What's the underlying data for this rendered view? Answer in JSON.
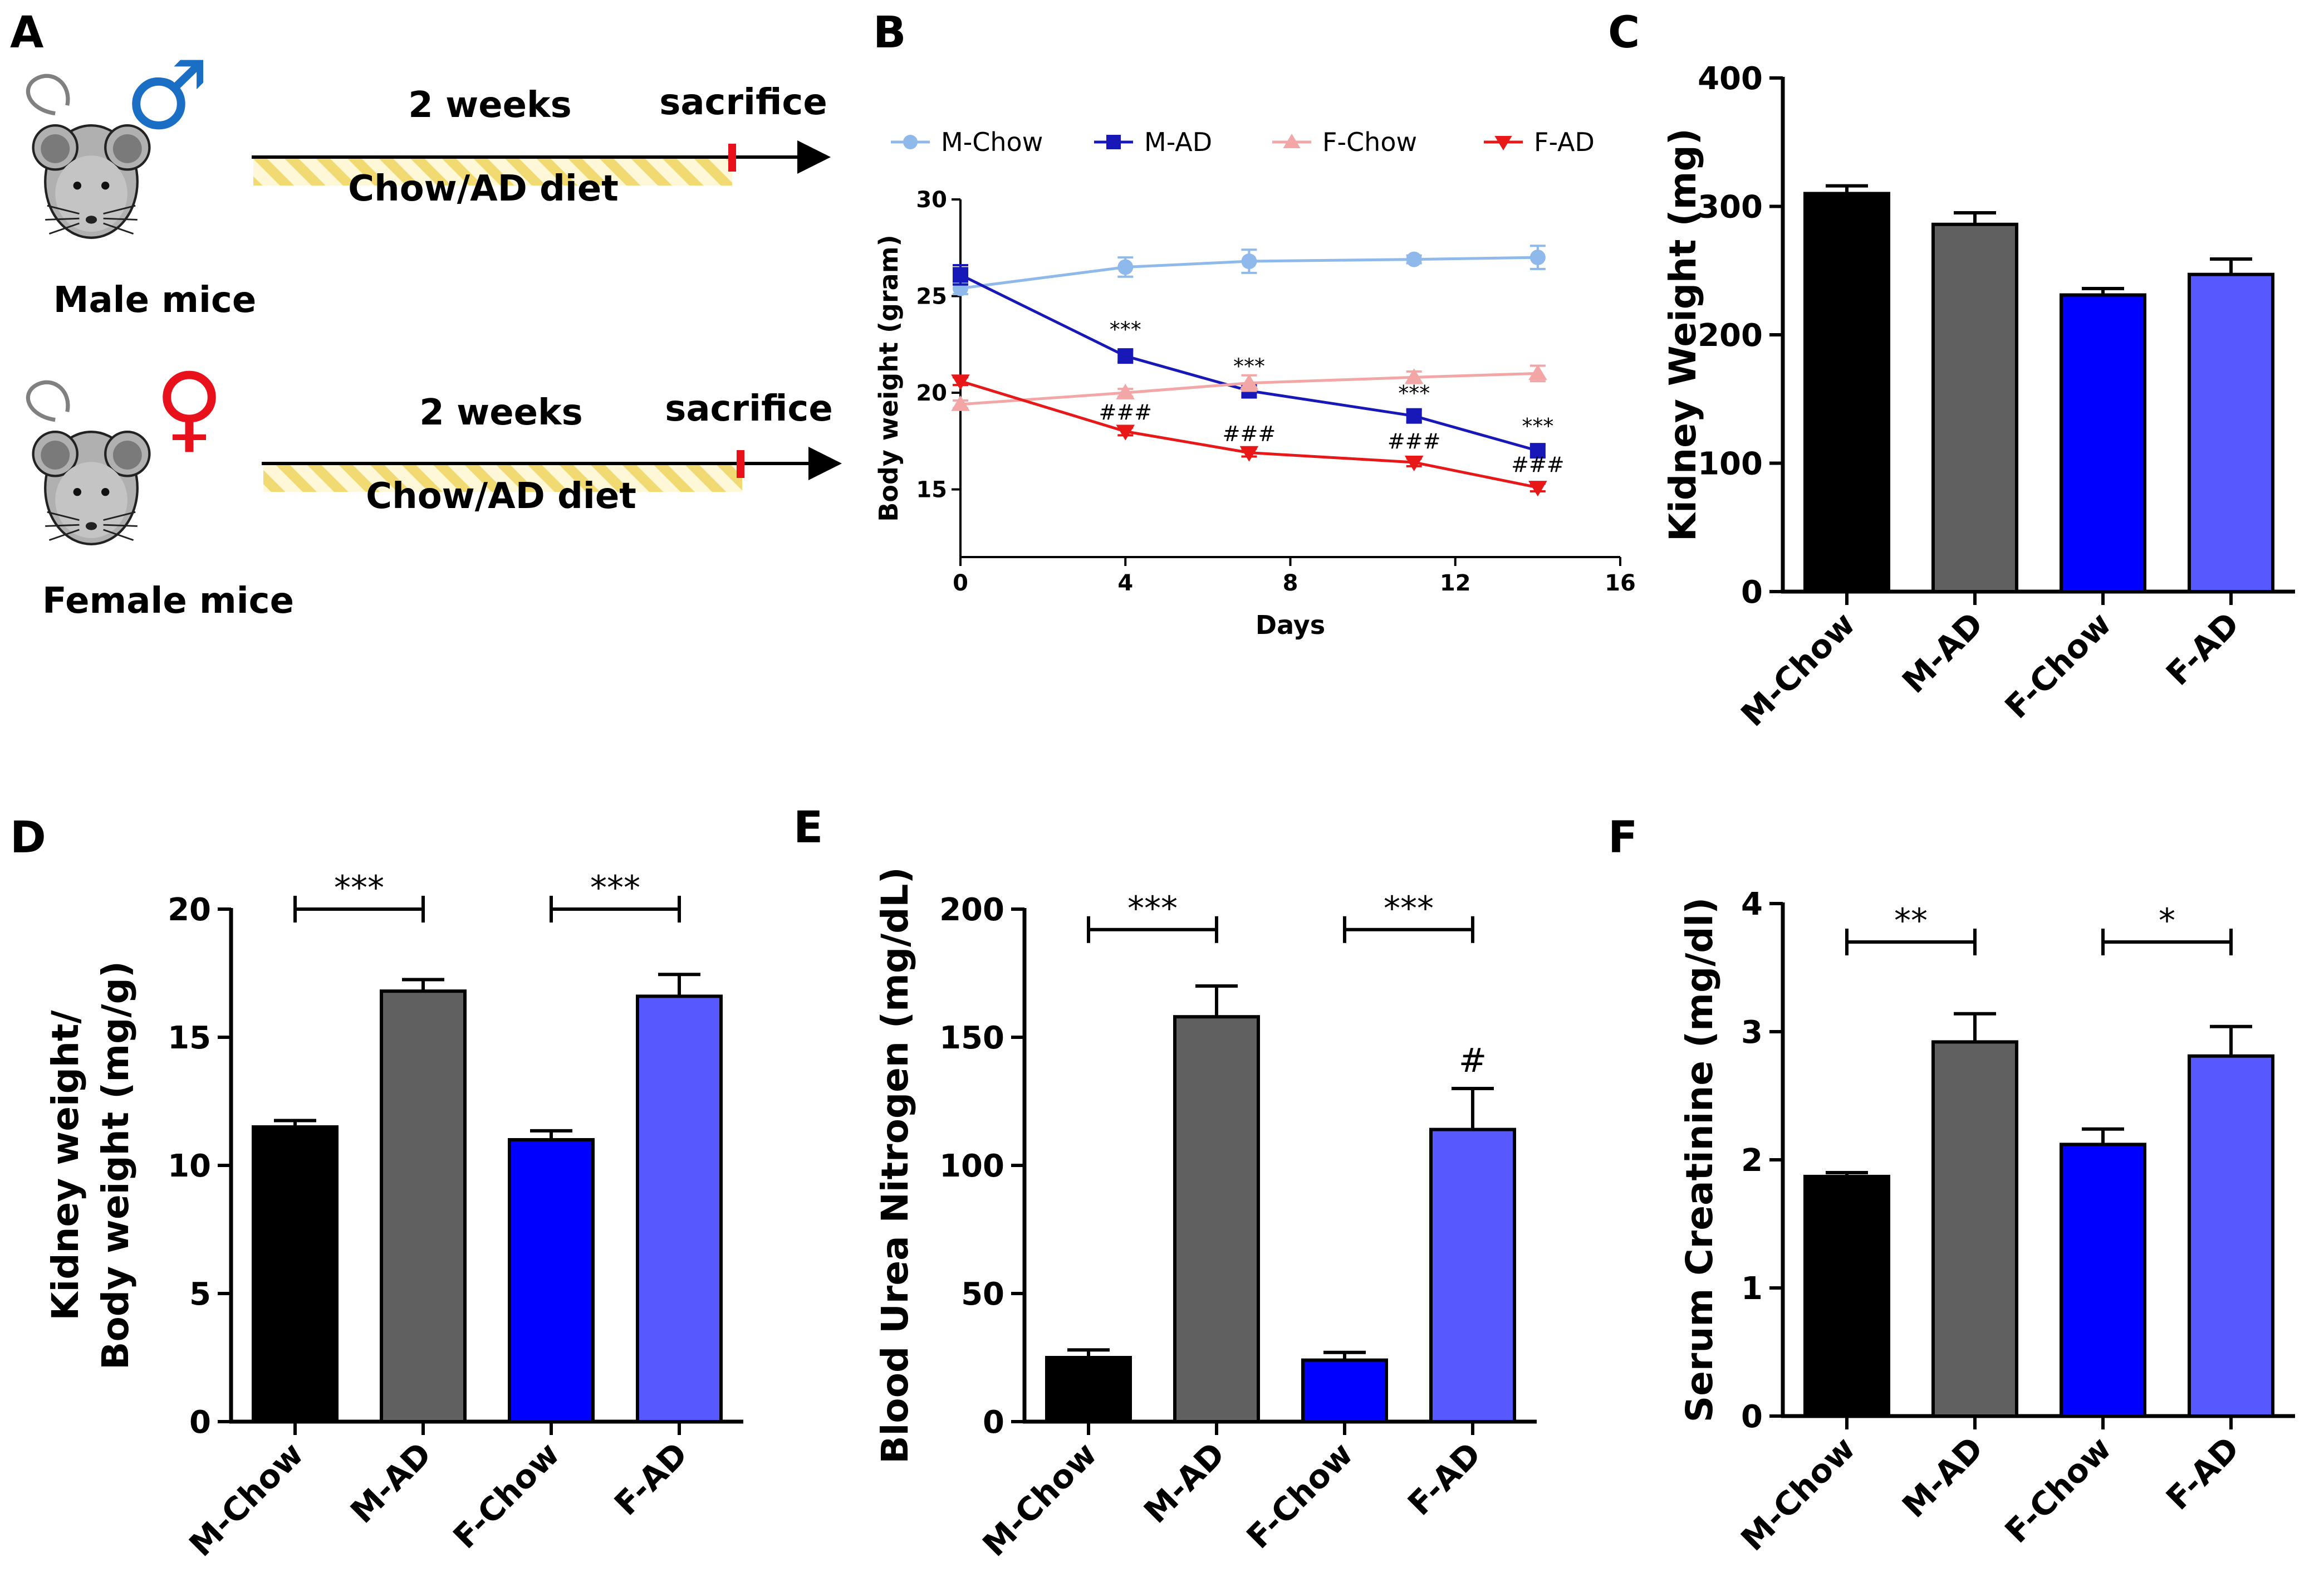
{
  "panels": {
    "A": {
      "letter": "A",
      "rows": [
        {
          "duration": "2 weeks",
          "endpoint": "sacrifice",
          "diet": "Chow/AD diet",
          "group": "Male mice",
          "sex_symbol": "♂",
          "sex_color": "#1a6fc4"
        },
        {
          "duration": "2 weeks",
          "endpoint": "sacrifice",
          "diet": "Chow/AD diet",
          "group": "Female mice",
          "sex_symbol": "♀",
          "sex_color": "#e8101a"
        }
      ]
    },
    "B": {
      "letter": "B"
    },
    "C": {
      "letter": "C"
    },
    "D": {
      "letter": "D"
    },
    "E": {
      "letter": "E"
    },
    "F": {
      "letter": "F"
    }
  },
  "colors": {
    "m_chow": "#000000",
    "m_ad": "#606060",
    "f_chow": "#0000ff",
    "f_ad": "#5858ff",
    "line_m_chow": "#8fb9ea",
    "line_m_ad": "#1818b8",
    "line_f_chow": "#f2a6a6",
    "line_f_ad": "#e81818"
  },
  "chart_data": [
    {
      "id": "B",
      "type": "line",
      "xlabel": "Days",
      "ylabel": "Body weight (gram)",
      "xlim": [
        0,
        16
      ],
      "xticks": [
        0,
        4,
        8,
        12,
        16
      ],
      "ylim": [
        11.5,
        30
      ],
      "yticks": [
        15,
        20,
        25,
        30
      ],
      "x": [
        0,
        4,
        7,
        11,
        14
      ],
      "series": [
        {
          "name": "M-Chow",
          "values": [
            25.4,
            26.5,
            26.8,
            26.9,
            27.0
          ],
          "errors": [
            0.3,
            0.5,
            0.6,
            0.2,
            0.6
          ],
          "marker": "circle",
          "color": "#8fb9ea"
        },
        {
          "name": "M-AD",
          "values": [
            26.1,
            21.9,
            20.1,
            18.8,
            17.0
          ],
          "errors": [
            0.5,
            0.3,
            0.3,
            0.3,
            0.3
          ],
          "marker": "square",
          "color": "#1818b8"
        },
        {
          "name": "F-Chow",
          "values": [
            19.4,
            20.0,
            20.5,
            20.8,
            21.0
          ],
          "errors": [
            0.2,
            0.2,
            0.4,
            0.3,
            0.4
          ],
          "marker": "triangle-up",
          "color": "#f2a6a6"
        },
        {
          "name": "F-AD",
          "values": [
            20.6,
            18.0,
            16.9,
            16.4,
            15.1
          ],
          "errors": [
            0.2,
            0.2,
            0.2,
            0.2,
            0.2
          ],
          "marker": "triangle-down",
          "color": "#e81818"
        }
      ],
      "annotations": [
        {
          "text": "***",
          "x": 4,
          "y": 22.9
        },
        {
          "text": "***",
          "x": 7,
          "y": 21.0
        },
        {
          "text": "***",
          "x": 11,
          "y": 19.6
        },
        {
          "text": "***",
          "x": 14,
          "y": 17.9
        },
        {
          "text": "###",
          "x": 4,
          "y": 18.6
        },
        {
          "text": "###",
          "x": 7,
          "y": 17.5
        },
        {
          "text": "###",
          "x": 11,
          "y": 17.1
        },
        {
          "text": "###",
          "x": 14,
          "y": 15.9
        }
      ],
      "legend_position": "top"
    },
    {
      "id": "C",
      "type": "bar",
      "ylabel": "Kidney Weight (mg)",
      "ylim": [
        0,
        400
      ],
      "yticks": [
        0,
        100,
        200,
        300,
        400
      ],
      "categories": [
        "M-Chow",
        "M-AD",
        "F-Chow",
        "F-AD"
      ],
      "values": [
        310,
        286,
        231,
        247
      ],
      "errors": [
        6,
        9,
        5,
        12
      ],
      "colors": [
        "#000000",
        "#606060",
        "#0000ff",
        "#5858ff"
      ],
      "significance": []
    },
    {
      "id": "D",
      "type": "bar",
      "ylabel": "Kidney weight/",
      "ylabel2": "Body weight (mg/g)",
      "ylim": [
        0,
        20
      ],
      "yticks": [
        0,
        5,
        10,
        15,
        20
      ],
      "categories": [
        "M-Chow",
        "M-AD",
        "F-Chow",
        "F-AD"
      ],
      "values": [
        11.5,
        16.8,
        11.0,
        16.6
      ],
      "errors": [
        0.25,
        0.45,
        0.35,
        0.85
      ],
      "colors": [
        "#000000",
        "#606060",
        "#0000ff",
        "#5858ff"
      ],
      "significance": [
        {
          "from": 0,
          "to": 1,
          "label": "***",
          "y": 20.0
        },
        {
          "from": 2,
          "to": 3,
          "label": "***",
          "y": 20.0
        }
      ],
      "marks": []
    },
    {
      "id": "E",
      "type": "bar",
      "ylabel": "Blood Urea Nitrogen (mg/dL)",
      "ylim": [
        0,
        200
      ],
      "yticks": [
        0,
        50,
        100,
        150,
        200
      ],
      "categories": [
        "M-Chow",
        "M-AD",
        "F-Chow",
        "F-AD"
      ],
      "values": [
        25,
        158,
        24,
        114
      ],
      "errors": [
        3,
        12,
        3,
        16
      ],
      "colors": [
        "#000000",
        "#606060",
        "#0000ff",
        "#5858ff"
      ],
      "significance": [
        {
          "from": 0,
          "to": 1,
          "label": "***",
          "y": 192
        },
        {
          "from": 2,
          "to": 3,
          "label": "***",
          "y": 192
        }
      ],
      "marks": [
        {
          "index": 3,
          "label": "#"
        }
      ]
    },
    {
      "id": "F",
      "type": "bar",
      "ylabel": "Serum Creatinine (mg/dl)",
      "ylim": [
        0,
        4
      ],
      "yticks": [
        0,
        1,
        2,
        3,
        4
      ],
      "categories": [
        "M-Chow",
        "M-AD",
        "F-Chow",
        "F-AD"
      ],
      "values": [
        1.87,
        2.92,
        2.12,
        2.81
      ],
      "errors": [
        0.03,
        0.22,
        0.12,
        0.23
      ],
      "colors": [
        "#000000",
        "#606060",
        "#0000ff",
        "#5858ff"
      ],
      "significance": [
        {
          "from": 0,
          "to": 1,
          "label": "**",
          "y": 3.7
        },
        {
          "from": 2,
          "to": 3,
          "label": "*",
          "y": 3.7
        }
      ],
      "marks": []
    }
  ]
}
